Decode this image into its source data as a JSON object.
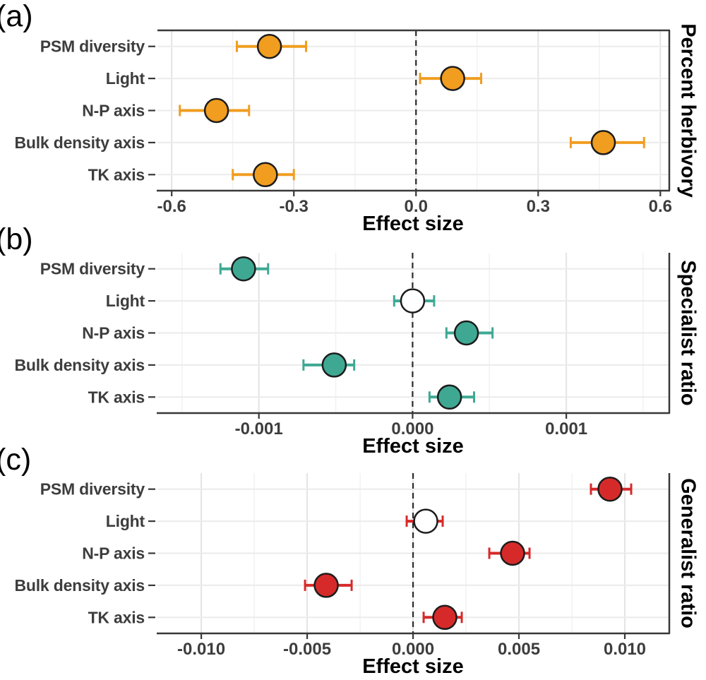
{
  "chart_data": [
    {
      "type": "scatter",
      "panel_letter": "(a)",
      "strip_label": "Percent herbivory",
      "xlabel": "Effect size",
      "categories": [
        "PSM diversity",
        "Light",
        "N-P axis",
        "Bulk density axis",
        "TK axis"
      ],
      "series_color": "#F09D20",
      "xlim": [
        -0.635,
        0.622
      ],
      "x_ticks": [
        {
          "value": -0.6,
          "label": "-0.6"
        },
        {
          "value": -0.3,
          "label": "-0.3"
        },
        {
          "value": 0.0,
          "label": "0.0"
        },
        {
          "value": 0.3,
          "label": "0.3"
        },
        {
          "value": 0.6,
          "label": "0.6"
        }
      ],
      "x_minor_ticks": [
        -0.45,
        -0.15,
        0.15,
        0.45
      ],
      "zero_line": 0,
      "grid": "major+minor",
      "borders": [
        "top",
        "right",
        "bottom"
      ],
      "points": [
        {
          "category": "PSM diversity",
          "value": -0.36,
          "ci_low": -0.44,
          "ci_high": -0.27,
          "fill": "solid"
        },
        {
          "category": "Light",
          "value": 0.09,
          "ci_low": 0.01,
          "ci_high": 0.16,
          "fill": "solid"
        },
        {
          "category": "N-P axis",
          "value": -0.49,
          "ci_low": -0.58,
          "ci_high": -0.41,
          "fill": "solid"
        },
        {
          "category": "Bulk density axis",
          "value": 0.46,
          "ci_low": 0.38,
          "ci_high": 0.56,
          "fill": "solid"
        },
        {
          "category": "TK axis",
          "value": -0.37,
          "ci_low": -0.45,
          "ci_high": -0.3,
          "fill": "solid"
        }
      ]
    },
    {
      "type": "scatter",
      "panel_letter": "(b)",
      "strip_label": "Specialist ratio",
      "xlabel": "Effect size",
      "categories": [
        "PSM diversity",
        "Light",
        "N-P axis",
        "Bulk density axis",
        "TK axis"
      ],
      "series_color": "#3FA893",
      "xlim": [
        -0.00166,
        0.00167
      ],
      "x_ticks": [
        {
          "value": -0.001,
          "label": "-0.001"
        },
        {
          "value": 0.0,
          "label": "0.000"
        },
        {
          "value": 0.001,
          "label": "0.001"
        }
      ],
      "x_minor_ticks": [
        -0.0015,
        -0.0005,
        0.0005,
        0.0015
      ],
      "zero_line": 0,
      "grid": "major+minor",
      "borders": [
        "right",
        "bottom"
      ],
      "points": [
        {
          "category": "PSM diversity",
          "value": -0.0011,
          "ci_low": -0.00125,
          "ci_high": -0.00094,
          "fill": "solid"
        },
        {
          "category": "Light",
          "value": 0.0,
          "ci_low": -0.00012,
          "ci_high": 0.00014,
          "fill": "open"
        },
        {
          "category": "N-P axis",
          "value": 0.00035,
          "ci_low": 0.00022,
          "ci_high": 0.00052,
          "fill": "solid"
        },
        {
          "category": "Bulk density axis",
          "value": -0.00051,
          "ci_low": -0.00071,
          "ci_high": -0.00038,
          "fill": "solid"
        },
        {
          "category": "TK axis",
          "value": 0.00024,
          "ci_low": 0.00011,
          "ci_high": 0.0004,
          "fill": "solid"
        }
      ]
    },
    {
      "type": "scatter",
      "panel_letter": "(c)",
      "strip_label": "Generalist ratio",
      "xlabel": "Effect size",
      "categories": [
        "PSM diversity",
        "Light",
        "N-P axis",
        "Bulk density axis",
        "TK axis"
      ],
      "series_color": "#D62A2A",
      "xlim": [
        -0.01207,
        0.0121
      ],
      "x_ticks": [
        {
          "value": -0.01,
          "label": "-0.010"
        },
        {
          "value": -0.005,
          "label": "-0.005"
        },
        {
          "value": 0.0,
          "label": "0.000"
        },
        {
          "value": 0.005,
          "label": "0.005"
        },
        {
          "value": 0.01,
          "label": "0.010"
        }
      ],
      "x_minor_ticks": [
        -0.0075,
        -0.0025,
        0.0025,
        0.0075
      ],
      "zero_line": 0,
      "grid": "major+minor",
      "borders": [
        "right",
        "bottom"
      ],
      "points": [
        {
          "category": "PSM diversity",
          "value": 0.0093,
          "ci_low": 0.0084,
          "ci_high": 0.0103,
          "fill": "solid"
        },
        {
          "category": "Light",
          "value": 0.0006,
          "ci_low": -0.0003,
          "ci_high": 0.0014,
          "fill": "open"
        },
        {
          "category": "N-P axis",
          "value": 0.0047,
          "ci_low": 0.0036,
          "ci_high": 0.0055,
          "fill": "solid"
        },
        {
          "category": "Bulk density axis",
          "value": -0.0041,
          "ci_low": -0.0051,
          "ci_high": -0.0029,
          "fill": "solid"
        },
        {
          "category": "TK axis",
          "value": 0.0015,
          "ci_low": 0.0005,
          "ci_high": 0.0023,
          "fill": "solid"
        }
      ]
    }
  ],
  "style": {
    "open_point_fill": "#FFFFFF",
    "point_outline": "#1C1C1C",
    "axis_color": "#383838",
    "grid_major_color": "#E4E4E4",
    "grid_minor_color": "#F2F2F2",
    "row_grid_color": "#EBEBEB",
    "label_color": "#3D3D3D"
  }
}
